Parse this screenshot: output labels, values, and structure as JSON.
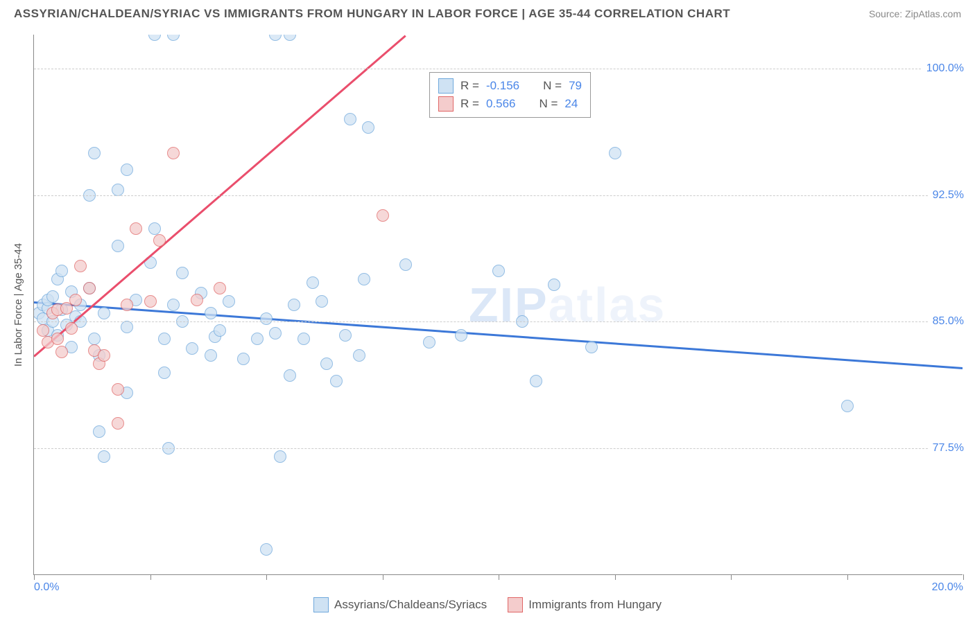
{
  "title": "ASSYRIAN/CHALDEAN/SYRIAC VS IMMIGRANTS FROM HUNGARY IN LABOR FORCE | AGE 35-44 CORRELATION CHART",
  "source": "Source: ZipAtlas.com",
  "watermark_a": "ZIP",
  "watermark_b": "atlas",
  "ylabel": "In Labor Force | Age 35-44",
  "chart": {
    "type": "scatter",
    "xlim": [
      0,
      20
    ],
    "ylim": [
      70,
      102
    ],
    "x_ticks": [
      0,
      2.5,
      5,
      7.5,
      10,
      12.5,
      15,
      17.5,
      20
    ],
    "x_tick_labels": {
      "0": "0.0%",
      "20": "20.0%"
    },
    "y_ticks": [
      77.5,
      85.0,
      92.5,
      100.0
    ],
    "y_tick_labels": [
      "77.5%",
      "85.0%",
      "92.5%",
      "100.0%"
    ],
    "grid_color": "#cccccc",
    "background_color": "#ffffff",
    "axis_color": "#888888",
    "tick_label_color": "#4a86e8",
    "series": [
      {
        "name": "Assyrians/Chaldeans/Syriacs",
        "fill": "#cfe2f3",
        "stroke": "#6fa8dc",
        "line_color": "#3c78d8",
        "R": "-0.156",
        "N": "79",
        "trend": {
          "x1": 0,
          "y1": 86.2,
          "x2": 20,
          "y2": 82.3
        },
        "points": [
          [
            0.1,
            85.5
          ],
          [
            0.2,
            86.0
          ],
          [
            0.2,
            85.2
          ],
          [
            0.3,
            85.8
          ],
          [
            0.3,
            86.3
          ],
          [
            0.3,
            84.5
          ],
          [
            0.4,
            85.0
          ],
          [
            0.4,
            86.5
          ],
          [
            0.5,
            87.5
          ],
          [
            0.5,
            84.2
          ],
          [
            0.6,
            85.7
          ],
          [
            0.6,
            88.0
          ],
          [
            0.7,
            84.8
          ],
          [
            0.8,
            86.8
          ],
          [
            0.8,
            83.5
          ],
          [
            0.9,
            85.3
          ],
          [
            1.0,
            86.0
          ],
          [
            1.0,
            85.0
          ],
          [
            1.2,
            87.0
          ],
          [
            1.2,
            92.5
          ],
          [
            1.3,
            95.0
          ],
          [
            1.3,
            84.0
          ],
          [
            1.4,
            83.0
          ],
          [
            1.4,
            78.5
          ],
          [
            1.5,
            77.0
          ],
          [
            1.5,
            85.5
          ],
          [
            1.8,
            92.8
          ],
          [
            1.8,
            89.5
          ],
          [
            2.0,
            94.0
          ],
          [
            2.0,
            80.8
          ],
          [
            2.0,
            84.7
          ],
          [
            2.2,
            86.3
          ],
          [
            2.5,
            88.5
          ],
          [
            2.6,
            90.5
          ],
          [
            2.6,
            102.0
          ],
          [
            2.8,
            84.0
          ],
          [
            2.8,
            82.0
          ],
          [
            2.9,
            77.5
          ],
          [
            3.0,
            86.0
          ],
          [
            3.0,
            102.0
          ],
          [
            3.2,
            87.9
          ],
          [
            3.2,
            85.0
          ],
          [
            3.4,
            83.4
          ],
          [
            3.6,
            86.7
          ],
          [
            3.8,
            85.5
          ],
          [
            3.8,
            83.0
          ],
          [
            3.9,
            84.1
          ],
          [
            4.0,
            84.5
          ],
          [
            4.2,
            86.2
          ],
          [
            4.5,
            82.8
          ],
          [
            4.8,
            84.0
          ],
          [
            5.0,
            85.2
          ],
          [
            5.0,
            71.5
          ],
          [
            5.2,
            102.0
          ],
          [
            5.2,
            84.3
          ],
          [
            5.3,
            77.0
          ],
          [
            5.5,
            81.8
          ],
          [
            5.5,
            102.0
          ],
          [
            5.6,
            86.0
          ],
          [
            5.8,
            84.0
          ],
          [
            6.0,
            87.3
          ],
          [
            6.2,
            86.2
          ],
          [
            6.3,
            82.5
          ],
          [
            6.5,
            81.5
          ],
          [
            6.7,
            84.2
          ],
          [
            6.8,
            97.0
          ],
          [
            7.0,
            83.0
          ],
          [
            7.1,
            87.5
          ],
          [
            7.2,
            96.5
          ],
          [
            8.0,
            88.4
          ],
          [
            8.5,
            83.8
          ],
          [
            9.2,
            84.2
          ],
          [
            10.0,
            88.0
          ],
          [
            10.5,
            85.0
          ],
          [
            10.8,
            81.5
          ],
          [
            11.2,
            87.2
          ],
          [
            12.0,
            83.5
          ],
          [
            12.5,
            95.0
          ],
          [
            17.5,
            80.0
          ]
        ]
      },
      {
        "name": "Immigrants from Hungary",
        "fill": "#f4cccc",
        "stroke": "#e06666",
        "line_color": "#ea4e6c",
        "R": "0.566",
        "N": "24",
        "trend": {
          "x1": 0,
          "y1": 83.0,
          "x2": 8.0,
          "y2": 102.0
        },
        "points": [
          [
            0.2,
            84.5
          ],
          [
            0.3,
            83.8
          ],
          [
            0.4,
            85.5
          ],
          [
            0.5,
            85.7
          ],
          [
            0.5,
            84.0
          ],
          [
            0.6,
            83.2
          ],
          [
            0.7,
            85.8
          ],
          [
            0.8,
            84.6
          ],
          [
            0.9,
            86.3
          ],
          [
            1.0,
            88.3
          ],
          [
            1.2,
            87.0
          ],
          [
            1.3,
            83.3
          ],
          [
            1.4,
            82.5
          ],
          [
            1.5,
            83.0
          ],
          [
            1.8,
            81.0
          ],
          [
            1.8,
            79.0
          ],
          [
            2.0,
            86.0
          ],
          [
            2.2,
            90.5
          ],
          [
            2.5,
            86.2
          ],
          [
            2.7,
            89.8
          ],
          [
            3.0,
            95.0
          ],
          [
            3.5,
            86.3
          ],
          [
            4.0,
            87.0
          ],
          [
            7.5,
            91.3
          ]
        ]
      }
    ]
  },
  "legend_box": {
    "rows": [
      {
        "label_r": "R =",
        "label_n": "N ="
      },
      {
        "label_r": "R =",
        "label_n": "N ="
      }
    ]
  },
  "bottom_legend": {}
}
